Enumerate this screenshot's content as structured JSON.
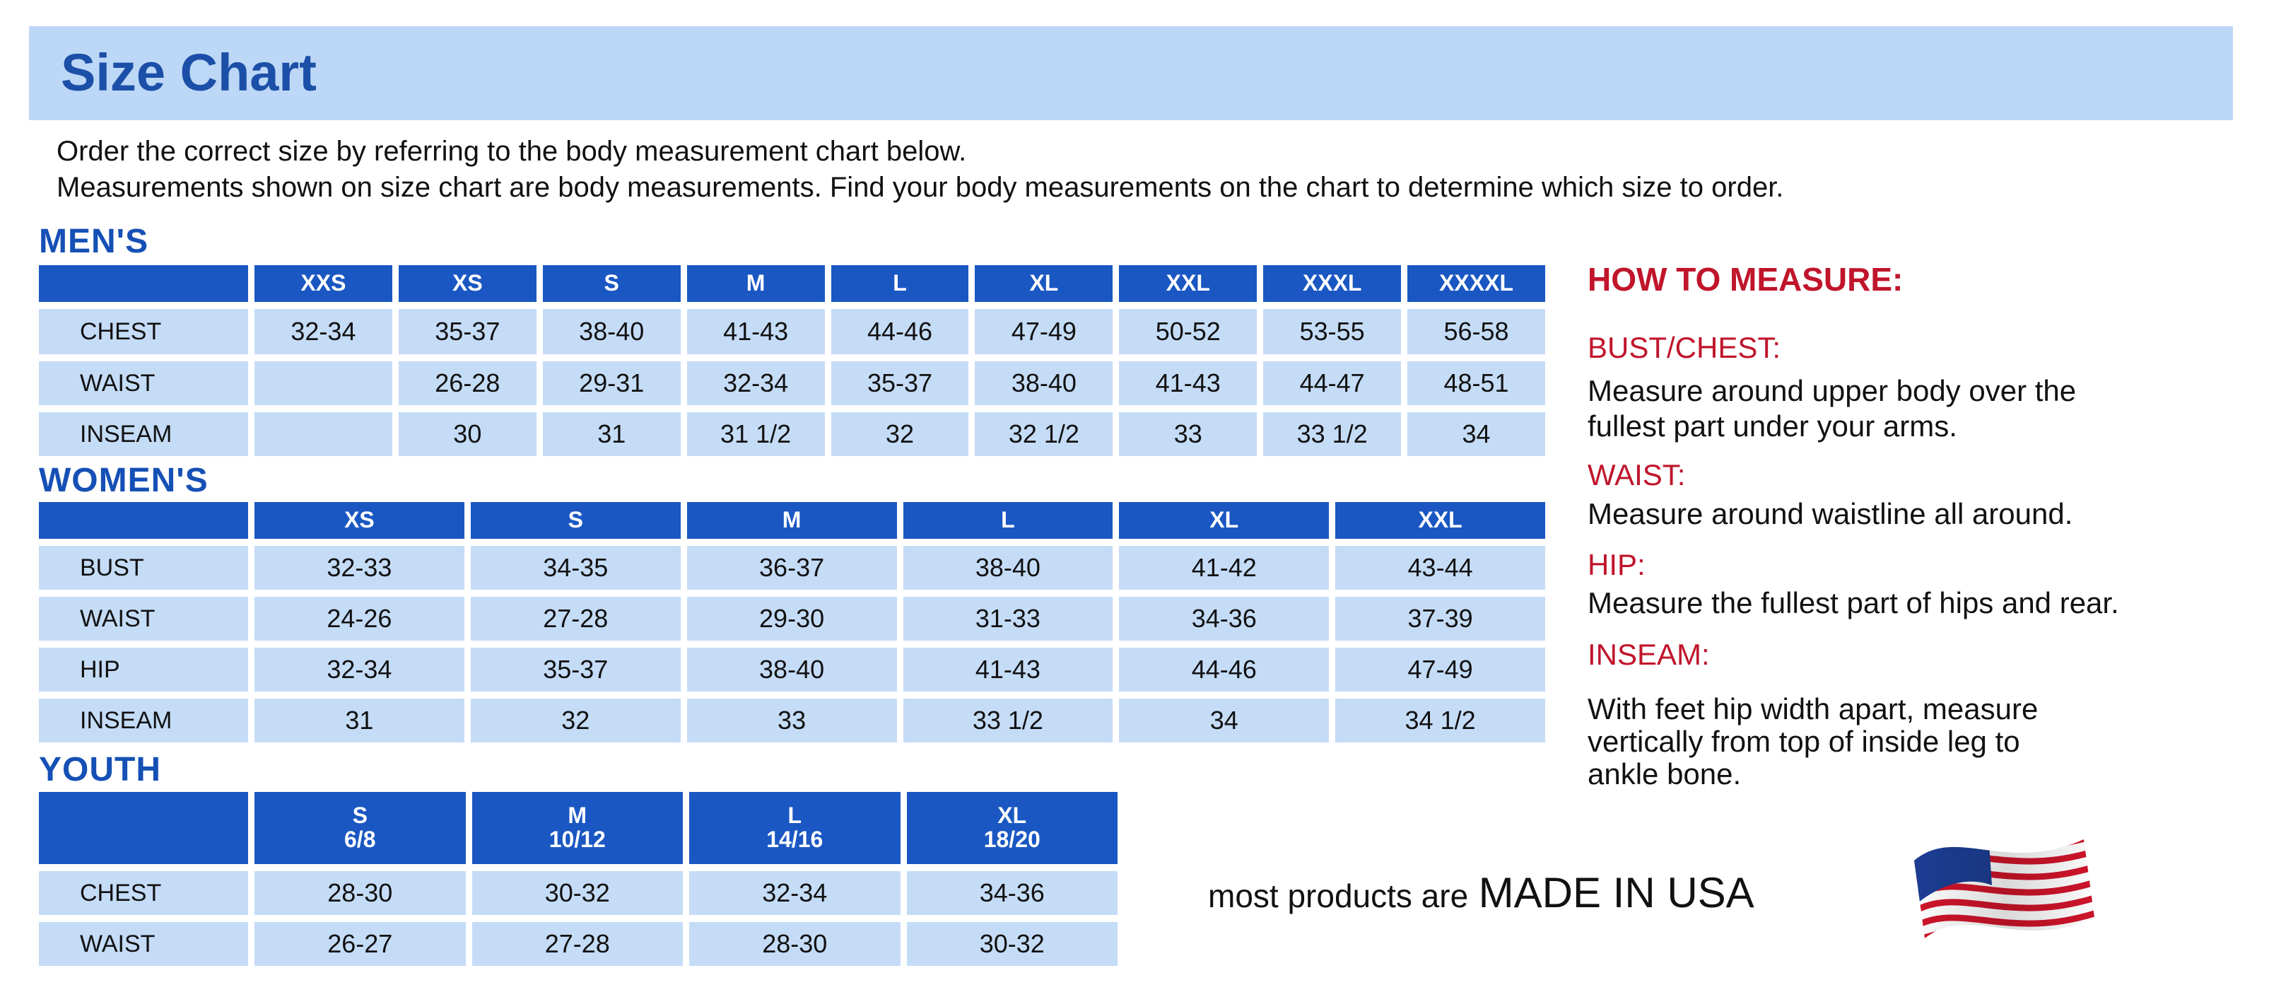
{
  "title": "Size Chart",
  "intro": [
    "Order the correct size by referring to the body measurement chart below.",
    "Measurements shown on size chart are body measurements.  Find your body measurements on the chart to determine which size to order."
  ],
  "mens": {
    "label": "MEN'S",
    "sizes": [
      "XXS",
      "XS",
      "S",
      "M",
      "L",
      "XL",
      "XXL",
      "XXXL",
      "XXXXL"
    ],
    "rows": [
      {
        "label": "CHEST",
        "values": [
          "32-34",
          "35-37",
          "38-40",
          "41-43",
          "44-46",
          "47-49",
          "50-52",
          "53-55",
          "56-58"
        ]
      },
      {
        "label": "WAIST",
        "values": [
          "",
          "26-28",
          "29-31",
          "32-34",
          "35-37",
          "38-40",
          "41-43",
          "44-47",
          "48-51"
        ]
      },
      {
        "label": "INSEAM",
        "values": [
          "",
          "30",
          "31",
          "31 1/2",
          "32",
          "32 1/2",
          "33",
          "33 1/2",
          "34"
        ]
      }
    ]
  },
  "womens": {
    "label": "WOMEN'S",
    "sizes": [
      "XS",
      "S",
      "M",
      "L",
      "XL",
      "XXL"
    ],
    "rows": [
      {
        "label": "BUST",
        "values": [
          "32-33",
          "34-35",
          "36-37",
          "38-40",
          "41-42",
          "43-44"
        ]
      },
      {
        "label": "WAIST",
        "values": [
          "24-26",
          "27-28",
          "29-30",
          "31-33",
          "34-36",
          "37-39"
        ]
      },
      {
        "label": "HIP",
        "values": [
          "32-34",
          "35-37",
          "38-40",
          "41-43",
          "44-46",
          "47-49"
        ]
      },
      {
        "label": "INSEAM",
        "values": [
          "31",
          "32",
          "33",
          "33 1/2",
          "34",
          "34 1/2"
        ]
      }
    ]
  },
  "youth": {
    "label": "YOUTH",
    "sizes": [
      "S\n6/8",
      "M\n10/12",
      "L\n14/16",
      "XL\n18/20"
    ],
    "rows": [
      {
        "label": "CHEST",
        "values": [
          "28-30",
          "30-32",
          "32-34",
          "34-36"
        ]
      },
      {
        "label": "WAIST",
        "values": [
          "26-27",
          "27-28",
          "28-30",
          "30-32"
        ]
      }
    ]
  },
  "how_to_measure": {
    "heading": "HOW TO MEASURE:",
    "items": [
      {
        "term": "BUST/CHEST:",
        "lines": [
          "Measure around upper body over the",
          "fullest part under your arms."
        ]
      },
      {
        "term": "WAIST:",
        "lines": [
          "Measure around waistline all around."
        ]
      },
      {
        "term": "HIP:",
        "lines": [
          "Measure the fullest part of hips and rear."
        ]
      },
      {
        "term": "INSEAM:",
        "lines": [
          "With feet hip width apart, measure",
          "vertically from top of inside leg to",
          "ankle bone."
        ]
      }
    ]
  },
  "footer": {
    "prefix": "most products are",
    "emphasis": "MADE IN USA",
    "flag_icon": "us-flag-icon"
  },
  "colors": {
    "header_band": "#bdd7f6",
    "table_header": "#1a57c2",
    "cell": "#c5dcf7",
    "section_title": "#1550b5",
    "measure_heading": "#c0152b"
  }
}
